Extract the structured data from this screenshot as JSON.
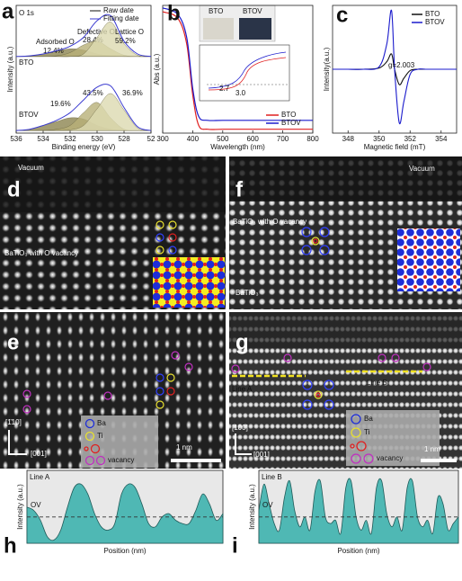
{
  "panels": {
    "a": {
      "letter": "a",
      "title": "O 1s",
      "legend": [
        "Raw date",
        "Fitting date"
      ],
      "xlabel": "Binding energy (eV)",
      "ylabel": "Intensity (a.u.)",
      "xlim": [
        536,
        526
      ],
      "xticks": [
        536,
        534,
        532,
        530,
        528,
        {
          "value": 526,
          "label": "52"
        }
      ],
      "ylim": [
        0,
        10
      ],
      "x": [
        536,
        535,
        534,
        533,
        532,
        531,
        530,
        529,
        528,
        527,
        526
      ],
      "spectra": [
        {
          "name": "BTO",
          "envelope": [
            6.0,
            6.05,
            6.2,
            6.45,
            6.8,
            7.5,
            8.8,
            9.2,
            7.2,
            6.2,
            6.0
          ],
          "components": [
            {
              "name": "Adsorbed O",
              "label": "12.4%",
              "color": "#8c8450",
              "values": [
                6.0,
                6.05,
                6.2,
                6.4,
                6.6,
                6.5,
                6.2,
                6.05,
                6.0,
                6.0,
                6.0
              ]
            },
            {
              "name": "Defective O",
              "label": "28.4%",
              "color": "#b8b078",
              "values": [
                6.0,
                6.0,
                6.0,
                6.05,
                6.3,
                6.9,
                7.2,
                6.6,
                6.1,
                6.0,
                6.0
              ]
            },
            {
              "name": "Lattice O",
              "label": "59.2%",
              "color": "#dcdab0",
              "values": [
                6.0,
                6.0,
                6.0,
                6.0,
                6.0,
                6.2,
                7.5,
                8.7,
                7.0,
                6.1,
                6.0
              ]
            }
          ]
        },
        {
          "name": "BTOV",
          "envelope": [
            0.2,
            0.3,
            0.6,
            1.0,
            1.6,
            2.6,
            3.6,
            3.7,
            2.0,
            0.5,
            0.2
          ],
          "components": [
            {
              "label": "19.6%",
              "color": "#8c8450",
              "values": [
                0.2,
                0.3,
                0.6,
                0.9,
                1.2,
                1.1,
                0.6,
                0.3,
                0.2,
                0.2,
                0.2
              ]
            },
            {
              "label": "43.5%",
              "color": "#b8b078",
              "values": [
                0.2,
                0.2,
                0.2,
                0.3,
                0.6,
                1.6,
                2.4,
                1.2,
                0.3,
                0.2,
                0.2
              ]
            },
            {
              "label": "36.9%",
              "color": "#dcdab0",
              "values": [
                0.2,
                0.2,
                0.2,
                0.2,
                0.25,
                0.6,
                1.9,
                3.1,
                1.8,
                0.4,
                0.2
              ]
            }
          ]
        }
      ]
    },
    "b": {
      "letter": "b",
      "xlabel": "Wavelength (nm)",
      "ylabel": "Abs (a.u.)",
      "xlim": [
        300,
        800
      ],
      "xticks": [
        300,
        400,
        500,
        600,
        700,
        800
      ],
      "ylim": [
        0,
        10
      ],
      "x": [
        300,
        350,
        380,
        400,
        420,
        450,
        500,
        600,
        700,
        800
      ],
      "series": [
        {
          "name": "BTO",
          "color": "#e02020",
          "values": [
            9.5,
            9.0,
            7.0,
            3.0,
            0.6,
            0.3,
            0.3,
            0.3,
            0.3,
            0.3
          ]
        },
        {
          "name": "BTOV",
          "color": "#1a1acc",
          "values": [
            9.8,
            9.3,
            7.5,
            3.5,
            1.3,
            1.0,
            1.0,
            1.0,
            1.0,
            1.0
          ]
        }
      ],
      "photos": [
        "BTO",
        "BTOV"
      ],
      "inset_labels": [
        "2.7",
        "3.0"
      ]
    },
    "c": {
      "letter": "c",
      "xlabel": "Magnetic field (mT)",
      "ylabel": "Intensity(a.u.)",
      "annotation": "g=2.003",
      "xlim": [
        347,
        355
      ],
      "xticks": [
        348,
        350,
        352,
        354
      ],
      "ylim": [
        0,
        10
      ],
      "x": [
        347,
        348,
        349,
        350,
        350.5,
        350.8,
        351,
        351.3,
        351.6,
        352,
        352.5,
        353,
        354,
        355
      ],
      "series": [
        {
          "name": "BTO",
          "color": "#111111",
          "values": [
            5,
            5,
            5,
            5.1,
            5.6,
            6.2,
            5,
            3.8,
            4.3,
            4.9,
            5,
            5,
            5,
            5
          ]
        },
        {
          "name": "BTOV",
          "color": "#1a1acc",
          "values": [
            5,
            5,
            5,
            5.2,
            7,
            9.6,
            5,
            0.8,
            2.5,
            4.6,
            5,
            5,
            5,
            5
          ]
        }
      ]
    },
    "d": {
      "letter": "d",
      "vacuum": "Vacuum",
      "label": "BaTiO₃ with O vacancy"
    },
    "f": {
      "letter": "f",
      "vacuum": "Vacuum",
      "label": "BaTiO₃ with O vacancy",
      "bulk": "BaTiO₃"
    },
    "e": {
      "letter": "e",
      "axis_v": "[1̄10]",
      "axis_h": "[001]",
      "legend": [
        "Ba",
        "Ti",
        "vacancy"
      ],
      "scale": "1 nm"
    },
    "g": {
      "letter": "g",
      "line_a": "Line A",
      "line_b": "Line B",
      "axis_v": "[100]",
      "axis_h": "[001]",
      "legend": [
        "Ba",
        "Ti",
        "vacancy"
      ],
      "scale": "1 nm"
    },
    "h": {
      "letter": "h",
      "line": "Line A",
      "ov": "OV",
      "ylabel": "Intensity (a.u.)",
      "xlabel": "Position (nm)",
      "ylim": [
        0,
        1
      ],
      "dashed_level": 0.4,
      "values": [
        0.55,
        0.5,
        0.35,
        0.1,
        0.05,
        0.2,
        0.55,
        0.85,
        0.9,
        0.75,
        0.45,
        0.25,
        0.2,
        0.3,
        0.75,
        0.9,
        0.85,
        0.6,
        0.3,
        0.25,
        0.4,
        0.45,
        0.35,
        0.3,
        0.3,
        0.5,
        0.75,
        0.6,
        0.35,
        0.45
      ]
    },
    "i": {
      "letter": "i",
      "line": "Line B",
      "ov": "OV",
      "ylabel": "Intensity (a.u.)",
      "xlabel": "Position (nm)",
      "ylim": [
        0,
        1
      ],
      "dashed_level": 0.4,
      "values": [
        0.5,
        0.9,
        0.6,
        0.3,
        0.2,
        0.7,
        0.95,
        0.5,
        0.25,
        0.4,
        0.2,
        0.8,
        0.95,
        0.4,
        0.3,
        0.35,
        0.15,
        0.85,
        0.95,
        0.4,
        0.2,
        0.35,
        0.15,
        0.85,
        0.95,
        0.45,
        0.25,
        0.4,
        0.2,
        0.85,
        0.95,
        0.4,
        0.25,
        0.35,
        0.15,
        0.7,
        0.6,
        0.2,
        0.3,
        0.4
      ]
    }
  }
}
